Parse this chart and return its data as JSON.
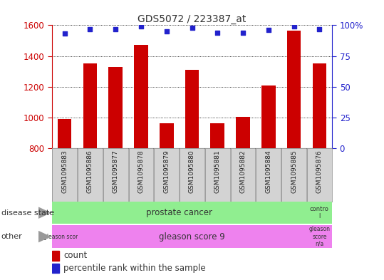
{
  "title": "GDS5072 / 223387_at",
  "samples": [
    "GSM1095883",
    "GSM1095886",
    "GSM1095877",
    "GSM1095878",
    "GSM1095879",
    "GSM1095880",
    "GSM1095881",
    "GSM1095882",
    "GSM1095884",
    "GSM1095885",
    "GSM1095876"
  ],
  "count_values": [
    990,
    1350,
    1330,
    1470,
    965,
    1310,
    965,
    1005,
    1210,
    1565,
    1350
  ],
  "percentile_values": [
    93,
    97,
    97,
    99,
    95,
    98,
    94,
    94,
    96,
    99,
    97
  ],
  "ylim_left": [
    800,
    1600
  ],
  "ylim_right": [
    0,
    100
  ],
  "yticks_left": [
    800,
    1000,
    1200,
    1400,
    1600
  ],
  "yticks_right": [
    0,
    25,
    50,
    75,
    100
  ],
  "bar_color": "#cc0000",
  "dot_color": "#2222cc",
  "background_color": "#ffffff",
  "plot_bg_color": "#ffffff",
  "tick_label_color": "#333333",
  "left_axis_color": "#cc0000",
  "right_axis_color": "#2222cc",
  "grid_color": "#000000",
  "ds_green": "#90ee90",
  "other_pink": "#ee82ee",
  "label_gray": "#d3d3d3"
}
